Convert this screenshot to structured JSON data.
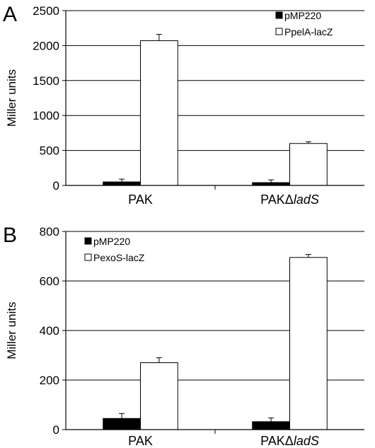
{
  "chart_data": [
    {
      "panel": "A",
      "type": "bar",
      "categories": [
        {
          "prefix": "PAK",
          "italic": ""
        },
        {
          "prefix": "PAKΔ",
          "italic": "ladS"
        }
      ],
      "series": [
        {
          "name": "pMP220",
          "color": "#000000",
          "values": [
            50,
            40
          ],
          "errors": [
            40,
            40
          ]
        },
        {
          "name": "PpelA-lacZ",
          "color": "#ffffff",
          "values": [
            2070,
            600
          ],
          "errors": [
            90,
            25
          ]
        }
      ],
      "ylabel": "Miller units",
      "ylim": [
        0,
        2500
      ],
      "yticks": [
        0,
        500,
        1000,
        1500,
        2000,
        2500
      ],
      "grid": true,
      "legend_position": "top-right"
    },
    {
      "panel": "B",
      "type": "bar",
      "categories": [
        {
          "prefix": "PAK",
          "italic": ""
        },
        {
          "prefix": "PAKΔ",
          "italic": "ladS"
        }
      ],
      "series": [
        {
          "name": "pMP220",
          "color": "#000000",
          "values": [
            45,
            32
          ],
          "errors": [
            20,
            15
          ]
        },
        {
          "name": "PexoS-lacZ",
          "color": "#ffffff",
          "values": [
            270,
            695
          ],
          "errors": [
            20,
            12
          ]
        }
      ],
      "ylabel": "Miller units",
      "ylim": [
        0,
        800
      ],
      "yticks": [
        0,
        200,
        400,
        600,
        800
      ],
      "grid": true,
      "legend_position": "top-left"
    }
  ]
}
